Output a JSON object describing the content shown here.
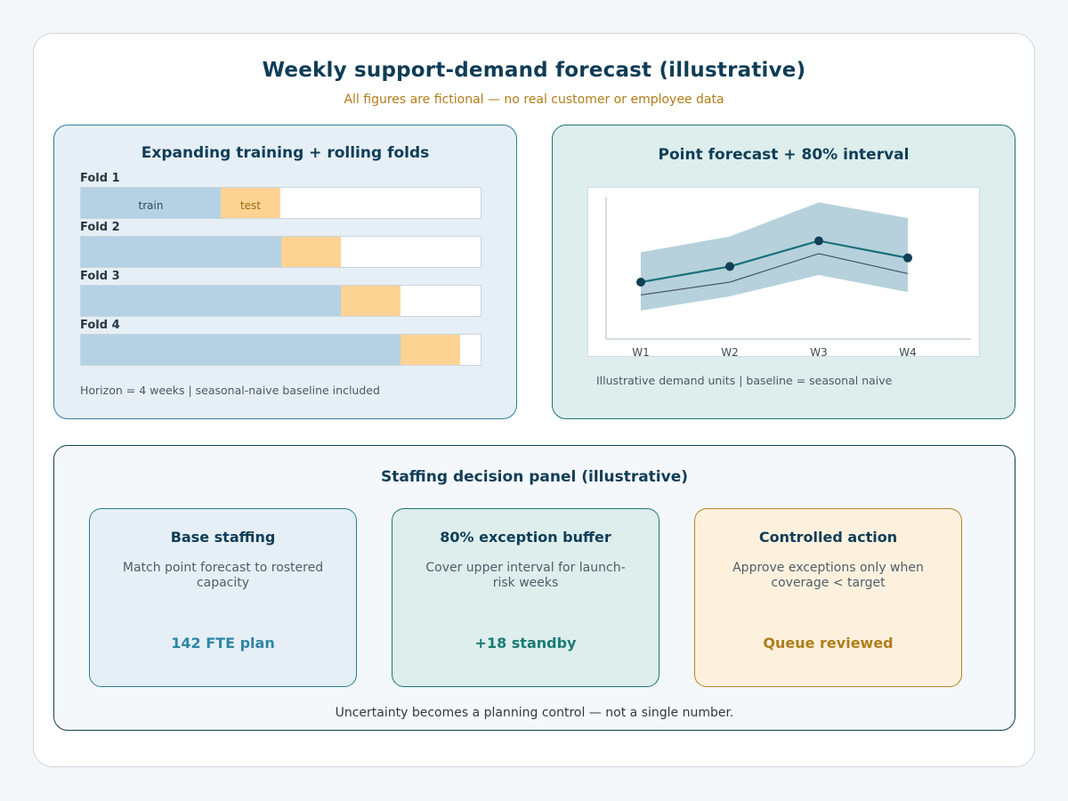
{
  "header": {
    "title": "Weekly support-demand forecast (illustrative)",
    "subtitle": "All figures are fictional — no real customer or employee data"
  },
  "folds_panel": {
    "title": "Expanding training + rolling folds",
    "folds": [
      {
        "label": "Fold 1",
        "train_share": 0.35,
        "test_share": 0.15
      },
      {
        "label": "Fold 2",
        "train_share": 0.5,
        "test_share": 0.15
      },
      {
        "label": "Fold 3",
        "train_share": 0.65,
        "test_share": 0.15
      },
      {
        "label": "Fold 4",
        "train_share": 0.8,
        "test_share": 0.15
      }
    ],
    "train_label": "train",
    "test_label": "test",
    "note": "Horizon = 4 weeks  |  seasonal-naive baseline included",
    "colors": {
      "train": "#b4d2e4",
      "test": "#fdd394"
    }
  },
  "forecast_panel": {
    "title": "Point forecast + 80% interval",
    "note": "Illustrative demand units  |  baseline = seasonal naive"
  },
  "chart_data": {
    "type": "line",
    "categories": [
      "W1",
      "W2",
      "W3",
      "W4"
    ],
    "series": [
      {
        "values": [
          0.4,
          0.51,
          0.69,
          0.57
        ],
        "role": "point-forecast",
        "color": "#17707a"
      },
      {
        "values": [
          0.31,
          0.4,
          0.6,
          0.46
        ],
        "role": "baseline",
        "color": "#4b5963"
      }
    ],
    "interval": {
      "lower": [
        0.2,
        0.3,
        0.45,
        0.33
      ],
      "upper": [
        0.61,
        0.72,
        0.96,
        0.85
      ],
      "color": "#a9c9d6"
    },
    "ylim": [
      0,
      1
    ],
    "grid": false
  },
  "staffing_panel": {
    "title": "Staffing decision panel (illustrative)",
    "cards": [
      {
        "title": "Base staffing",
        "desc": "Match point forecast to rostered capacity",
        "metric": "142 FTE plan",
        "accent": "#2e86a6",
        "bg": "#e6eff6",
        "border": "#2a8095"
      },
      {
        "title": "80% exception buffer",
        "desc": "Cover upper interval for launch-risk weeks",
        "metric": "+18 standby",
        "accent": "#1a7b74",
        "bg": "#ddeeed",
        "border": "#1f7574"
      },
      {
        "title": "Controlled action",
        "desc": "Approve exceptions only when coverage < target",
        "metric": "Queue reviewed",
        "accent": "#b07d1a",
        "bg": "#fdf1de",
        "border": "#b58528"
      }
    ],
    "footer": "Uncertainty becomes a planning control — not a single number."
  }
}
